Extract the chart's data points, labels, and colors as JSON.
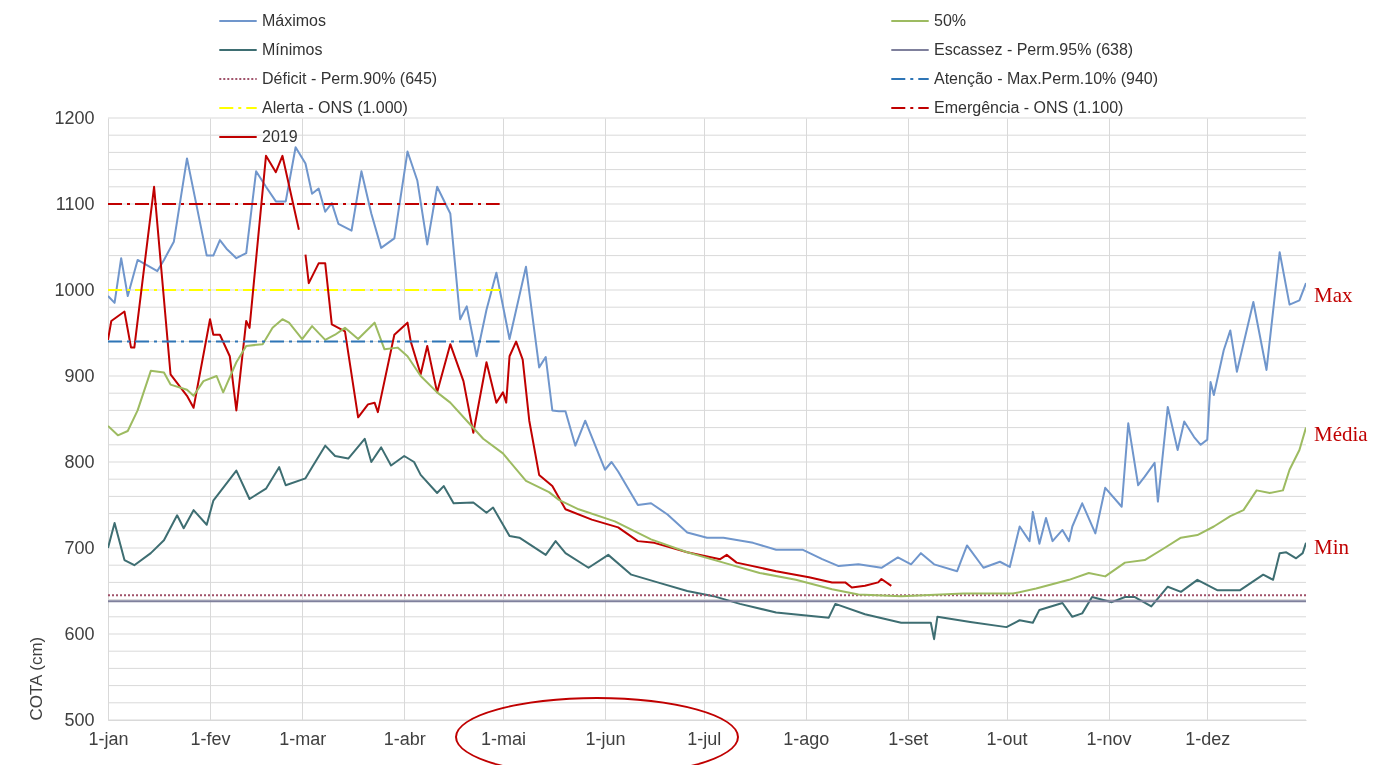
{
  "chart_data": {
    "type": "line",
    "ylabel": "COTA (cm)",
    "xlim": [
      "--01-01",
      "--12-31"
    ],
    "xticks": [
      {
        "value": "--01-01",
        "label": "1-jan"
      },
      {
        "value": "--02-01",
        "label": "1-fev"
      },
      {
        "value": "--03-01",
        "label": "1-mar"
      },
      {
        "value": "--04-01",
        "label": "1-abr"
      },
      {
        "value": "--05-01",
        "label": "1-mai"
      },
      {
        "value": "--06-01",
        "label": "1-jun"
      },
      {
        "value": "--07-01",
        "label": "1-jul"
      },
      {
        "value": "--08-01",
        "label": "1-ago"
      },
      {
        "value": "--09-01",
        "label": "1-set"
      },
      {
        "value": "--10-01",
        "label": "1-out"
      },
      {
        "value": "--11-01",
        "label": "1-nov"
      },
      {
        "value": "--12-01",
        "label": "1-dez"
      }
    ],
    "ylim": [
      500,
      1200
    ],
    "yticks": [
      500,
      {
        "value": 520,
        "label": null
      },
      {
        "value": 540,
        "label": null
      },
      {
        "value": 560,
        "label": null
      },
      {
        "value": 580,
        "label": null
      },
      600,
      {
        "value": 620,
        "label": null
      },
      {
        "value": 640,
        "label": null
      },
      {
        "value": 660,
        "label": null
      },
      {
        "value": 680,
        "label": null
      },
      700,
      {
        "value": 720,
        "label": null
      },
      {
        "value": 740,
        "label": null
      },
      {
        "value": 760,
        "label": null
      },
      {
        "value": 780,
        "label": null
      },
      800,
      {
        "value": 820,
        "label": null
      },
      {
        "value": 840,
        "label": null
      },
      {
        "value": 860,
        "label": null
      },
      {
        "value": 880,
        "label": null
      },
      900,
      {
        "value": 920,
        "label": null
      },
      {
        "value": 940,
        "label": null
      },
      {
        "value": 960,
        "label": null
      },
      {
        "value": 980,
        "label": null
      },
      1000,
      {
        "value": 1020,
        "label": null
      },
      {
        "value": 1040,
        "label": null
      },
      {
        "value": 1060,
        "label": null
      },
      {
        "value": 1080,
        "label": null
      },
      1100,
      {
        "value": 1120,
        "label": null
      },
      {
        "value": 1140,
        "label": null
      },
      {
        "value": 1160,
        "label": null
      },
      {
        "value": 1180,
        "label": null
      },
      1200
    ],
    "grid": true,
    "legend": "top",
    "line_style": "solid",
    "series": [
      {
        "name": "Máximos",
        "color": "#7096cc",
        "x": [
          "--01-01",
          "--01-03",
          "--01-05",
          "--01-07",
          "--01-10",
          "--01-16",
          "--01-18",
          "--01-21",
          "--01-25",
          "--01-31",
          "--02-02",
          "--02-04",
          "--02-06",
          "--02-09",
          "--02-12",
          "--02-15",
          "--02-18",
          "--02-21",
          "--02-24",
          "--02-27",
          "--03-02",
          "--03-04",
          "--03-06",
          "--03-08",
          "--03-10",
          "--03-12",
          "--03-16",
          "--03-19",
          "--03-22",
          "--03-25",
          "--03-29",
          "--04-02",
          "--04-05",
          "--04-08",
          "--04-11",
          "--04-15",
          "--04-18",
          "--04-20",
          "--04-23",
          "--04-26",
          "--04-29",
          "--05-03",
          "--05-08",
          "--05-12",
          "--05-14",
          "--05-16",
          "--05-18",
          "--05-20",
          "--05-23",
          "--05-26",
          "--06-01",
          "--06-03",
          "--06-05",
          "--06-11",
          "--06-15",
          "--06-20",
          "--06-26",
          "--07-02",
          "--07-07",
          "--07-16",
          "--07-23",
          "--07-31",
          "--08-06",
          "--08-11",
          "--08-17",
          "--08-24",
          "--08-29",
          "--09-02",
          "--09-05",
          "--09-09",
          "--09-16",
          "--09-19",
          "--09-24",
          "--09-29",
          "--10-02",
          "--10-05",
          "--10-08",
          "--10-09",
          "--10-11",
          "--10-13",
          "--10-15",
          "--10-18",
          "--10-20",
          "--10-21",
          "--10-24",
          "--10-28",
          "--10-31",
          "--11-05",
          "--11-07",
          "--11-10",
          "--11-12",
          "--11-15",
          "--11-16",
          "--11-19",
          "--11-22",
          "--11-24",
          "--11-27",
          "--11-29",
          "--12-01",
          "--12-02",
          "--12-03",
          "--12-06",
          "--12-08",
          "--12-10",
          "--12-15",
          "--12-19",
          "--12-23",
          "--12-26",
          "--12-29",
          "--12-31"
        ],
        "values": [
          993,
          985,
          1037,
          993,
          1035,
          1022,
          1035,
          1056,
          1153,
          1040,
          1040,
          1058,
          1048,
          1037,
          1043,
          1138,
          1120,
          1103,
          1103,
          1166,
          1147,
          1112,
          1118,
          1091,
          1101,
          1077,
          1069,
          1138,
          1089,
          1049,
          1060,
          1161,
          1127,
          1053,
          1120,
          1089,
          966,
          981,
          923,
          977,
          1020,
          943,
          1027,
          910,
          922,
          860,
          859,
          859,
          819,
          848,
          791,
          800,
          789,
          750,
          752,
          739,
          718,
          712,
          712,
          706,
          698,
          698,
          687,
          679,
          681,
          677,
          689,
          681,
          694,
          681,
          673,
          703,
          677,
          684,
          678,
          725,
          708,
          742,
          705,
          735,
          708,
          721,
          708,
          725,
          752,
          717,
          770,
          748,
          845,
          773,
          783,
          799,
          754,
          864,
          814,
          847,
          829,
          820,
          826,
          893,
          878,
          930,
          953,
          905,
          986,
          907,
          1044,
          983,
          988,
          1008
        ]
      },
      {
        "name": "Mínimos",
        "color": "#3e6e72",
        "x": [
          "--01-01",
          "--01-03",
          "--01-06",
          "--01-09",
          "--01-14",
          "--01-18",
          "--01-22",
          "--01-24",
          "--01-27",
          "--01-31",
          "--02-02",
          "--02-09",
          "--02-13",
          "--02-18",
          "--02-22",
          "--02-24",
          "--03-02",
          "--03-04",
          "--03-08",
          "--03-11",
          "--03-15",
          "--03-20",
          "--03-22",
          "--03-25",
          "--03-28",
          "--04-01",
          "--04-04",
          "--04-06",
          "--04-11",
          "--04-13",
          "--04-16",
          "--04-22",
          "--04-26",
          "--04-28",
          "--05-03",
          "--05-06",
          "--05-14",
          "--05-17",
          "--05-20",
          "--05-27",
          "--06-02",
          "--06-09",
          "--06-17",
          "--06-26",
          "--07-04",
          "--07-12",
          "--07-23",
          "--08-08",
          "--08-10",
          "--08-19",
          "--08-30",
          "--09-08",
          "--09-09",
          "--09-10",
          "--09-20",
          "--10-01",
          "--10-05",
          "--10-09",
          "--10-11",
          "--10-18",
          "--10-21",
          "--10-24",
          "--10-27",
          "--11-02",
          "--11-06",
          "--11-09",
          "--11-14",
          "--11-19",
          "--11-23",
          "--11-28",
          "--12-04",
          "--12-11",
          "--12-18",
          "--12-21",
          "--12-23",
          "--12-25",
          "--12-28",
          "--12-30",
          "--12-31"
        ],
        "values": [
          700,
          729,
          686,
          680,
          694,
          709,
          738,
          723,
          744,
          727,
          755,
          790,
          757,
          769,
          794,
          773,
          781,
          794,
          819,
          807,
          804,
          827,
          800,
          817,
          796,
          807,
          800,
          785,
          764,
          772,
          752,
          753,
          741,
          747,
          714,
          712,
          692,
          708,
          694,
          677,
          692,
          669,
          660,
          650,
          644,
          635,
          625,
          619,
          635,
          623,
          613,
          613,
          594,
          620,
          614,
          608,
          616,
          613,
          628,
          636,
          620,
          624,
          643,
          637,
          643,
          643,
          632,
          655,
          649,
          663,
          651,
          651,
          669,
          663,
          694,
          695,
          688,
          694,
          706
        ]
      },
      {
        "name": "Déficit - Perm.90% (645)",
        "color": "#a0526a",
        "line_style": "dotted",
        "x": [
          "--01-01",
          "--12-31"
        ],
        "values": [
          645,
          645
        ]
      },
      {
        "name": "Alerta - ONS (1.000)",
        "color": "#ffff00",
        "line_style": "dashed",
        "x": [
          "--01-01",
          "--05-01"
        ],
        "values": [
          1000,
          1000
        ]
      },
      {
        "name": "2019",
        "color": "#c00000",
        "x": [
          "--01-01",
          "--01-02",
          "--01-06",
          "--01-08",
          "--01-09",
          "--01-15",
          "--01-20",
          "--01-25",
          "--01-27",
          "--02-01",
          "--02-02",
          "--02-04",
          "--02-07",
          "--02-09",
          "--02-12",
          "--02-13",
          "--02-18",
          "--02-21",
          "--02-23",
          "--02-28",
          "--03-01",
          "--03-02",
          "--03-03",
          "--03-06",
          "--03-08",
          "--03-10",
          "--03-14",
          "--03-18",
          "--03-21",
          "--03-23",
          "--03-24",
          "--03-29",
          "--04-02",
          "--04-03",
          "--04-06",
          "--04-08",
          "--04-11",
          "--04-15",
          "--04-19",
          "--04-22",
          "--04-26",
          "--04-29",
          "--05-01",
          "--05-02",
          "--05-03",
          "--05-05",
          "--05-07",
          "--05-09",
          "--05-12",
          "--05-16",
          "--05-20",
          "--05-28",
          "--06-05",
          "--06-11",
          "--06-16",
          "--06-26",
          "--07-06",
          "--07-08",
          "--07-11",
          "--07-23",
          "--08-02",
          "--08-09",
          "--08-13",
          "--08-15",
          "--08-19",
          "--08-23",
          "--08-24",
          "--08-27"
        ],
        "values": [
          942,
          964,
          975,
          933,
          933,
          1120,
          902,
          877,
          863,
          966,
          948,
          948,
          923,
          860,
          964,
          956,
          1156,
          1137,
          1156,
          1070,
          null,
          1041,
          1008,
          1031,
          1031,
          960,
          952,
          852,
          867,
          869,
          858,
          948,
          962,
          940,
          902,
          935,
          881,
          937,
          894,
          834,
          916,
          869,
          881,
          869,
          923,
          940,
          919,
          848,
          785,
          772,
          745,
          733,
          724,
          708,
          706,
          695,
          687,
          692,
          683,
          673,
          666,
          660,
          660,
          654,
          656,
          660,
          664,
          656
        ]
      },
      {
        "name": "50%",
        "color": "#9dbb61",
        "x": [
          "--01-01",
          "--01-04",
          "--01-07",
          "--01-10",
          "--01-14",
          "--01-18",
          "--01-20",
          "--01-25",
          "--01-27",
          "--01-30",
          "--02-03",
          "--02-05",
          "--02-09",
          "--02-12",
          "--02-17",
          "--02-20",
          "--02-23",
          "--02-25",
          "--03-01",
          "--03-04",
          "--03-08",
          "--03-11",
          "--03-14",
          "--03-18",
          "--03-23",
          "--03-26",
          "--03-30",
          "--04-02",
          "--04-06",
          "--04-11",
          "--04-15",
          "--04-20",
          "--04-25",
          "--05-01",
          "--05-08",
          "--05-15",
          "--05-18",
          "--05-24",
          "--06-04",
          "--06-15",
          "--06-26",
          "--07-07",
          "--07-18",
          "--07-29",
          "--08-09",
          "--08-17",
          "--08-30",
          "--09-18",
          "--10-03",
          "--10-10",
          "--10-20",
          "--10-26",
          "--10-31",
          "--11-06",
          "--11-12",
          "--11-18",
          "--11-23",
          "--11-28",
          "--12-03",
          "--12-08",
          "--12-12",
          "--12-16",
          "--12-20",
          "--12-24",
          "--12-26",
          "--12-29",
          "--12-31"
        ],
        "values": [
          842,
          831,
          836,
          860,
          906,
          904,
          890,
          884,
          877,
          894,
          900,
          881,
          916,
          935,
          937,
          956,
          966,
          962,
          943,
          958,
          942,
          948,
          956,
          943,
          962,
          931,
          933,
          923,
          900,
          881,
          869,
          848,
          827,
          810,
          778,
          765,
          756,
          745,
          731,
          710,
          695,
          683,
          671,
          663,
          652,
          646,
          644,
          647,
          647,
          653,
          663,
          671,
          667,
          683,
          686,
          700,
          712,
          715,
          725,
          737,
          744,
          767,
          764,
          767,
          791,
          814,
          840
        ]
      },
      {
        "name": "Escassez - Perm.95% (638)",
        "color": "#7f809c",
        "x": [
          "--01-01",
          "--12-31"
        ],
        "values": [
          638,
          638
        ]
      },
      {
        "name": "Atenção - Max.Perm.10% (940)",
        "color": "#2e75b6",
        "line_style": "dashed",
        "x": [
          "--01-01",
          "--04-30"
        ],
        "values": [
          940,
          940
        ]
      },
      {
        "name": "Emergência - ONS (1.100)",
        "color": "#c00000",
        "line_style": "dashed",
        "x": [
          "--01-01",
          "--04-30"
        ],
        "values": [
          1100,
          1100
        ]
      }
    ],
    "annotations": [
      {
        "text": "Max",
        "x": "--12-31",
        "y": 993
      },
      {
        "text": "Média",
        "x": "--12-31",
        "y": 831
      },
      {
        "text": "Min",
        "x": "--12-31",
        "y": 700
      }
    ]
  }
}
